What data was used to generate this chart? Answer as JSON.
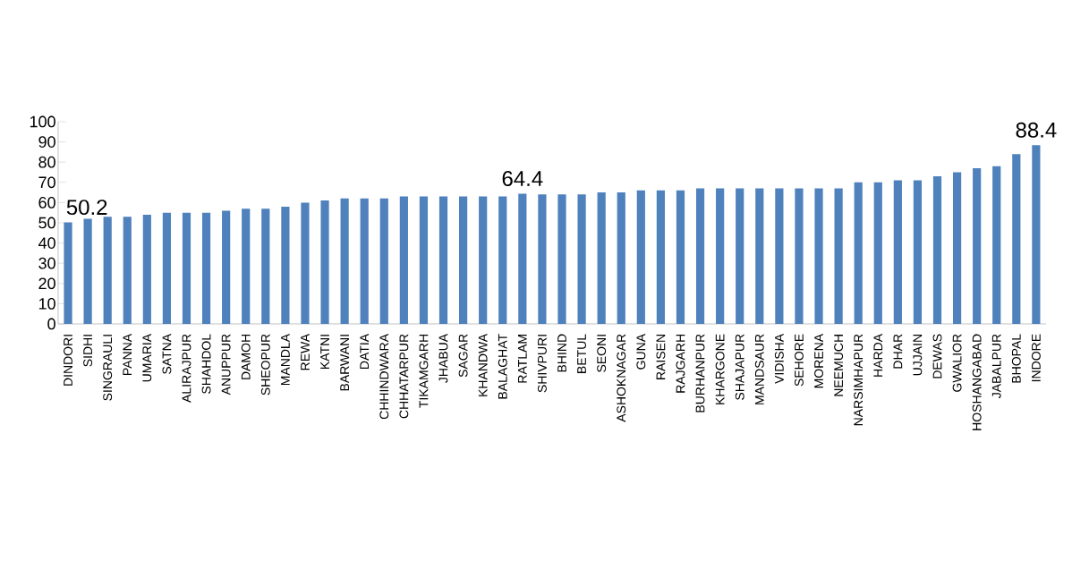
{
  "chart_data": {
    "type": "bar",
    "categories": [
      "DINDORI",
      "SIDHI",
      "SINGRAULI",
      "PANNA",
      "UMARIA",
      "SATNA",
      "ALIRAJPUR",
      "SHAHDOL",
      "ANUPPUR",
      "DAMOH",
      "SHEOPUR",
      "MANDLA",
      "REWA",
      "KATNI",
      "BARWANI",
      "DATIA",
      "CHHINDWARA",
      "CHHATARPUR",
      "TIKAMGARH",
      "JHABUA",
      "SAGAR",
      "KHANDWA",
      "BALAGHAT",
      "RATLAM",
      "SHIVPURI",
      "BHIND",
      "BETUL",
      "SEONI",
      "ASHOKNAGAR",
      "GUNA",
      "RAISEN",
      "RAJGARH",
      "BURHANPUR",
      "KHARGONE",
      "SHAJAPUR",
      "MANDSAUR",
      "VIDISHA",
      "SEHORE",
      "MORENA",
      "NEEMUCH",
      "NARSIMHAPUR",
      "HARDA",
      "DHAR",
      "UJJAIN",
      "DEWAS",
      "GWALIOR",
      "HOSHANGABAD",
      "JABALPUR",
      "BHOPAL",
      "INDORE"
    ],
    "values": [
      50.2,
      52,
      53,
      53,
      54,
      55,
      55,
      55,
      56,
      57,
      57,
      58,
      60,
      61,
      62,
      62,
      62,
      63,
      63,
      63,
      63,
      63,
      63,
      64.4,
      64,
      64,
      64,
      65,
      65,
      66,
      66,
      66,
      67,
      67,
      67,
      67,
      67,
      67,
      67,
      67,
      70,
      70,
      71,
      71,
      73,
      75,
      77,
      78,
      84,
      88.4
    ],
    "value_labels": [
      "50.2",
      null,
      null,
      null,
      null,
      null,
      null,
      null,
      null,
      null,
      null,
      null,
      null,
      null,
      null,
      null,
      null,
      null,
      null,
      null,
      null,
      null,
      null,
      "64.4",
      null,
      null,
      null,
      null,
      null,
      null,
      null,
      null,
      null,
      null,
      null,
      null,
      null,
      null,
      null,
      null,
      null,
      null,
      null,
      null,
      null,
      null,
      null,
      null,
      null,
      "88.4"
    ],
    "color": "#4f81bd",
    "ylim": [
      0,
      100
    ],
    "yticks": [
      0,
      10,
      20,
      30,
      40,
      50,
      60,
      70,
      80,
      90,
      100
    ],
    "grid": false
  }
}
